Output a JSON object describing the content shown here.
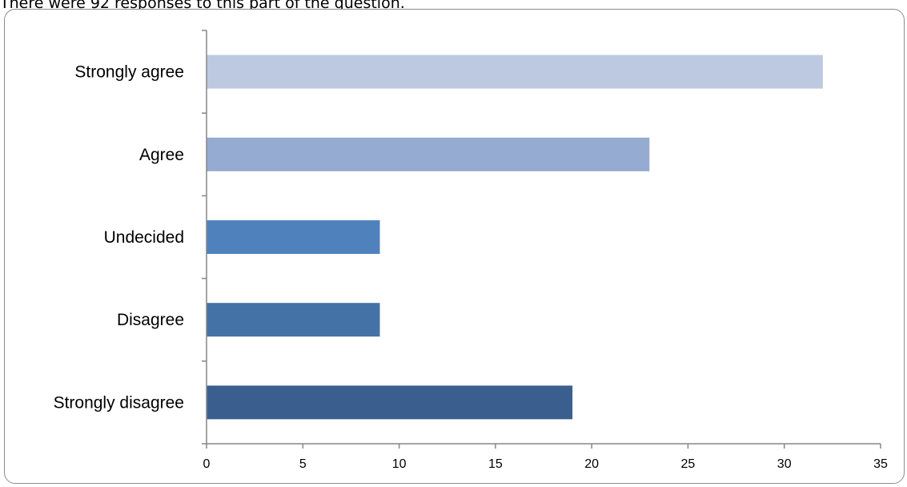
{
  "intro_text": "There were 92 responses to this part of the question.",
  "chart_data": {
    "type": "bar",
    "orientation": "horizontal",
    "categories": [
      "Strongly agree",
      "Agree",
      "Undecided",
      "Disagree",
      "Strongly disagree"
    ],
    "values": [
      32,
      23,
      9,
      9,
      19
    ],
    "colors": [
      "#bdc9e1",
      "#96abd1",
      "#4f81bd",
      "#4472a6",
      "#3a5f8f"
    ],
    "xlim": [
      0,
      35
    ],
    "xticks": [
      0,
      5,
      10,
      15,
      20,
      25,
      30,
      35
    ],
    "title": "",
    "xlabel": "",
    "ylabel": "",
    "grid": false,
    "legend": "none"
  }
}
